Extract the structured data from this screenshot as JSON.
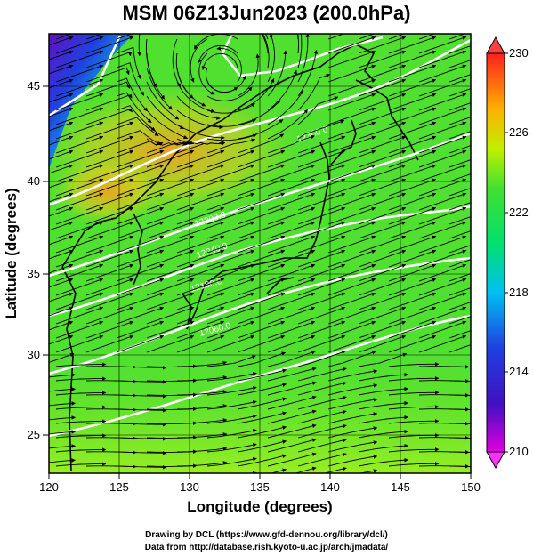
{
  "title": "MSM 06Z13Jun2023 (200.0hPa)",
  "x_axis": {
    "label": "Longitude (degrees)",
    "ticks": [
      "120",
      "125",
      "130",
      "135",
      "140",
      "145",
      "150"
    ]
  },
  "y_axis": {
    "label": "Latitude  (degrees)",
    "ticks": [
      "25",
      "30",
      "35",
      "40",
      "45"
    ]
  },
  "colorbar": {
    "ticks": [
      "210",
      "214",
      "218",
      "222",
      "226",
      "230"
    ],
    "colors": [
      "#e000e0",
      "#2020d0",
      "#00b0ff",
      "#00e070",
      "#80f000",
      "#f0e000",
      "#ff7000",
      "#ff2020"
    ]
  },
  "contour_labels": [
    "12060.0",
    "12180.0",
    "12240.0",
    "12300.0",
    "12360.0"
  ],
  "credits": {
    "line1": "Drawing by DCL (https://www.gfd-dennou.org/library/dcl/)",
    "line2": "Data from http://database.rish.kyoto-u.ac.jp/arch/jmadata/"
  },
  "map_colors": {
    "background": "#50e030",
    "warm_area": "#f0b020",
    "cold_area": "#2040d0",
    "south_area": "#90f020",
    "contour": "#ffffff",
    "streamline": "#000000"
  }
}
